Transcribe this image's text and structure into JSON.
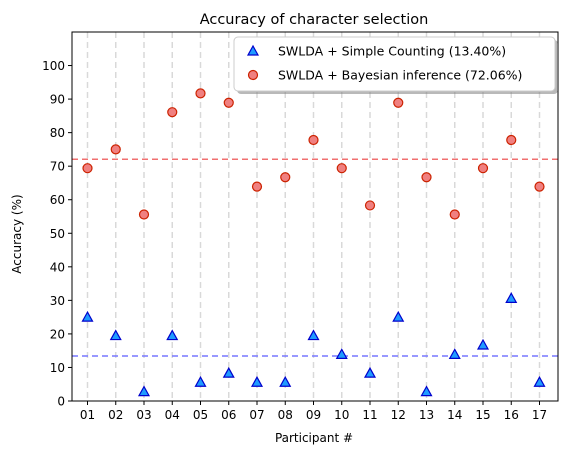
{
  "chart_data": {
    "type": "scatter",
    "title": "Accuracy of character selection",
    "xlabel": "Participant #",
    "ylabel": "Accuracy (%)",
    "ylim": [
      0,
      110
    ],
    "yticks": [
      0,
      10,
      20,
      30,
      40,
      50,
      60,
      70,
      80,
      90,
      100
    ],
    "categories": [
      "01",
      "02",
      "03",
      "04",
      "05",
      "06",
      "07",
      "08",
      "09",
      "10",
      "11",
      "12",
      "13",
      "14",
      "15",
      "16",
      "17"
    ],
    "vertical_gridlines": true,
    "legend_position": "top-right",
    "series": [
      {
        "name": "SWLDA + Simple Counting (13.40%)",
        "marker": "triangle",
        "fill": "#1f9bff",
        "edge": "#0000cc",
        "values": [
          25.0,
          19.5,
          2.8,
          19.5,
          5.6,
          8.3,
          5.6,
          5.6,
          19.5,
          13.9,
          8.3,
          25.0,
          2.8,
          13.9,
          16.7,
          30.6,
          5.6
        ],
        "mean": 13.4,
        "mean_line_color": "#7777ff"
      },
      {
        "name": "SWLDA + Bayesian inference (72.06%)",
        "marker": "circle",
        "fill": "#f08080",
        "edge": "#cc2200",
        "values": [
          69.4,
          75.0,
          55.6,
          86.1,
          91.7,
          88.9,
          63.9,
          66.7,
          77.8,
          69.4,
          58.3,
          88.9,
          66.7,
          55.6,
          69.4,
          77.8,
          63.9
        ],
        "mean": 72.06,
        "mean_line_color": "#f07070"
      }
    ]
  }
}
